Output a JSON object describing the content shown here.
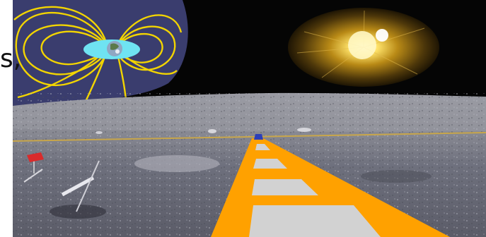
{
  "slide": {
    "fragment_text": "s,"
  },
  "scene": {
    "elements": {
      "magnetosphere": "magnetosphere-illustration",
      "earth": "earth-icon",
      "sun": "sun-icon",
      "lunar_surface": "moon-surface",
      "path": "orange-ladder-path",
      "flag": "flag-icon"
    },
    "colors": {
      "sky": "#050505",
      "magnetosphere_bg": "#3a3d6e",
      "field_lines": "#f2d400",
      "radiation_belt": "#6fe3f2",
      "sun_glow": "#c69414",
      "regolith": "#7d7f8c",
      "path_orange": "#ffa100",
      "path_gray": "#d2d2d2",
      "horizon_line": "#c8a64a",
      "flag_red": "#d92b2b"
    }
  }
}
